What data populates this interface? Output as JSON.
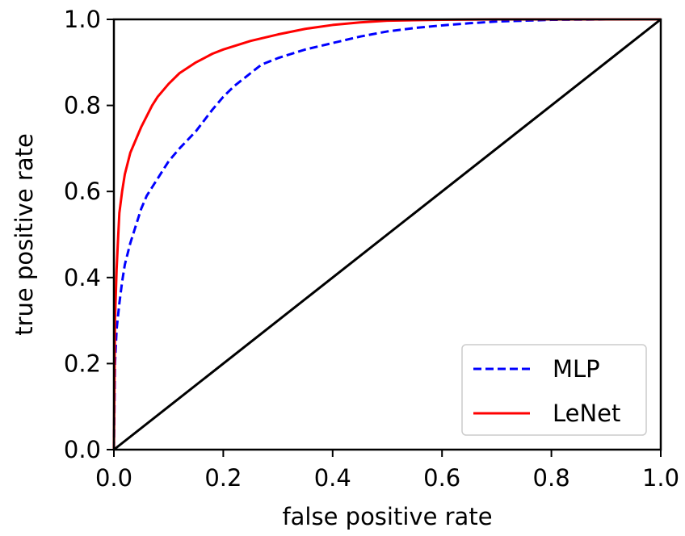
{
  "chart_data": {
    "type": "line",
    "title": "",
    "xlabel": "false positive rate",
    "ylabel": "true positive rate",
    "xlim": [
      0,
      1
    ],
    "ylim": [
      0,
      1
    ],
    "xticks": [
      "0.0",
      "0.2",
      "0.4",
      "0.6",
      "0.8",
      "1.0"
    ],
    "yticks": [
      "0.0",
      "0.2",
      "0.4",
      "0.6",
      "0.8",
      "1.0"
    ],
    "grid": false,
    "legend_position": "bottom-right",
    "series": [
      {
        "name": "MLP",
        "color": "#0000ff",
        "style": "dashed",
        "x": [
          0,
          0.002,
          0.005,
          0.01,
          0.015,
          0.02,
          0.03,
          0.04,
          0.05,
          0.06,
          0.07,
          0.08,
          0.1,
          0.12,
          0.15,
          0.18,
          0.2,
          0.22,
          0.25,
          0.27,
          0.3,
          0.35,
          0.4,
          0.45,
          0.5,
          0.55,
          0.6,
          0.65,
          0.7,
          0.8,
          0.9,
          1.0
        ],
        "y": [
          0,
          0.2,
          0.28,
          0.34,
          0.39,
          0.43,
          0.48,
          0.52,
          0.56,
          0.59,
          0.61,
          0.63,
          0.67,
          0.7,
          0.74,
          0.79,
          0.82,
          0.845,
          0.875,
          0.895,
          0.91,
          0.93,
          0.945,
          0.96,
          0.972,
          0.98,
          0.986,
          0.991,
          0.995,
          0.999,
          1.0,
          1.0
        ]
      },
      {
        "name": "LeNet",
        "color": "#ff0000",
        "style": "solid",
        "x": [
          0,
          0.002,
          0.005,
          0.008,
          0.01,
          0.015,
          0.02,
          0.03,
          0.04,
          0.05,
          0.06,
          0.07,
          0.08,
          0.1,
          0.12,
          0.15,
          0.18,
          0.2,
          0.25,
          0.3,
          0.35,
          0.4,
          0.45,
          0.5,
          0.6,
          0.7,
          0.8,
          0.9,
          1.0
        ],
        "y": [
          0,
          0.3,
          0.42,
          0.5,
          0.55,
          0.6,
          0.64,
          0.69,
          0.72,
          0.75,
          0.775,
          0.8,
          0.82,
          0.85,
          0.875,
          0.9,
          0.92,
          0.93,
          0.95,
          0.965,
          0.978,
          0.987,
          0.993,
          0.997,
          0.999,
          1.0,
          1.0,
          1.0,
          1.0
        ]
      },
      {
        "color": "#000000",
        "style": "solid",
        "x": [
          0,
          1
        ],
        "y": [
          0,
          1
        ]
      }
    ]
  }
}
